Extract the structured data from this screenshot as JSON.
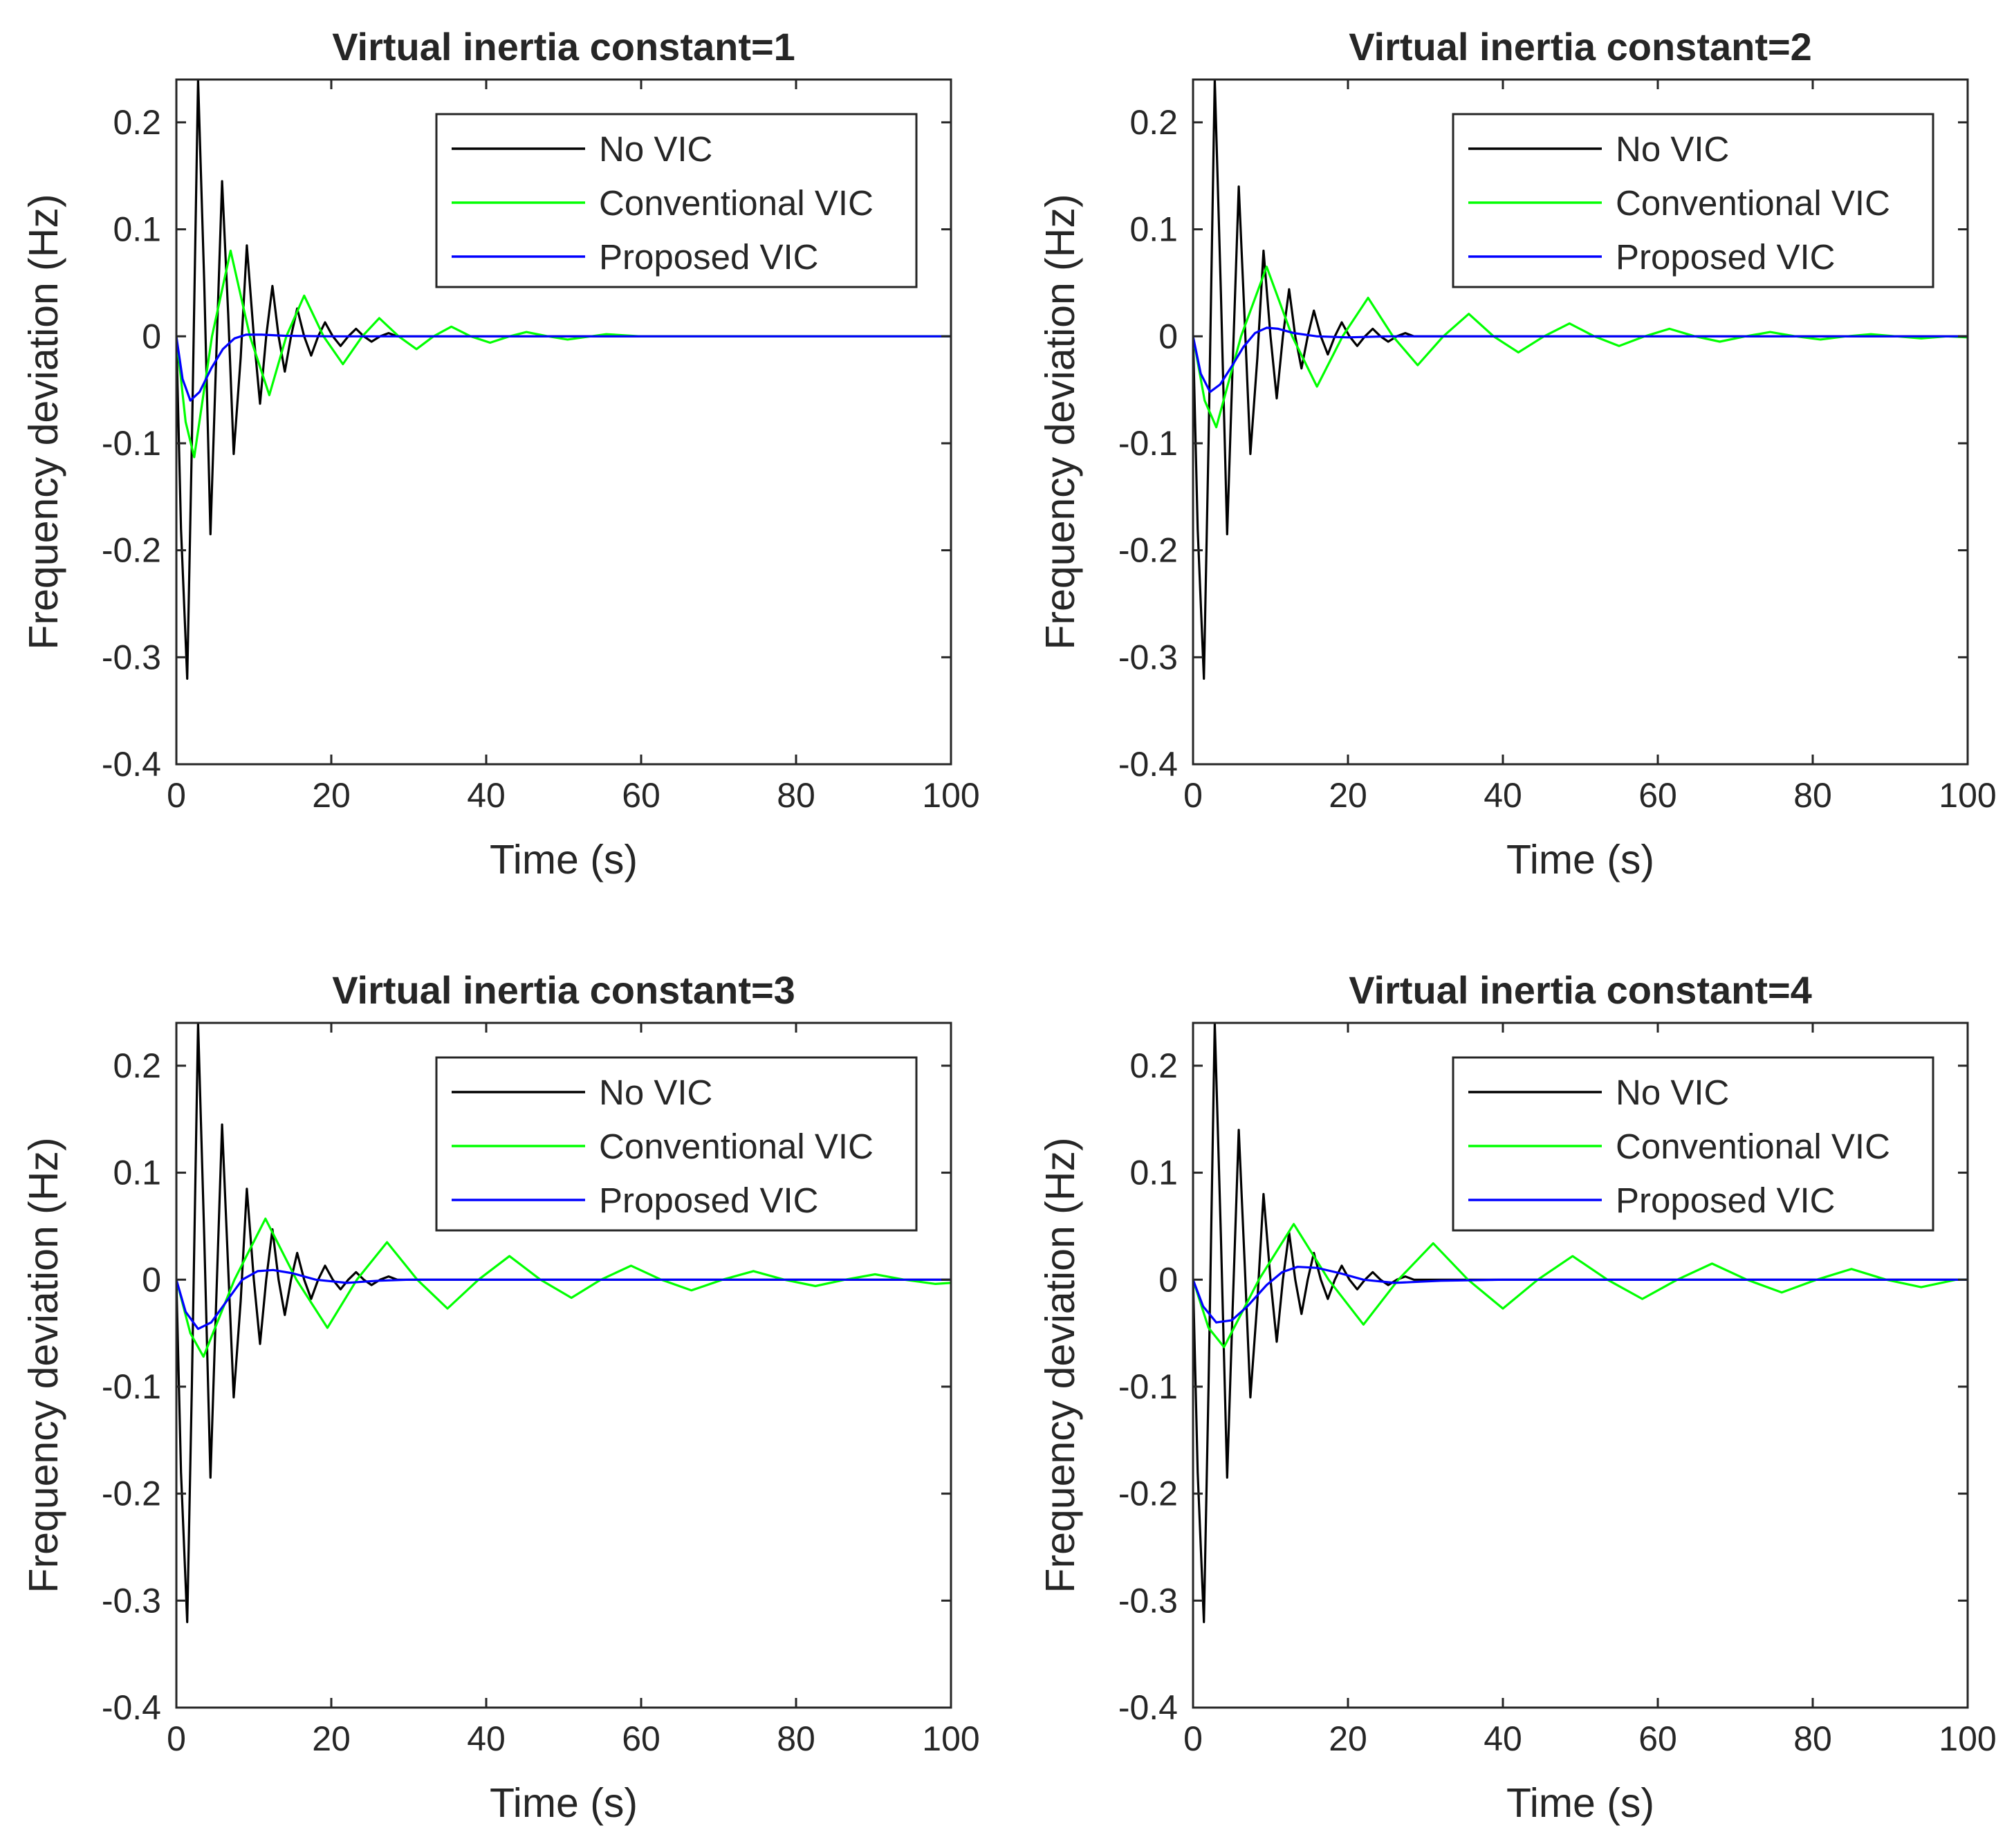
{
  "figure": {
    "x_label": "Time (s)",
    "y_label": "Frequency deviation (Hz)"
  },
  "chart_data": [
    {
      "type": "line",
      "title": "Virtual inertia constant=1",
      "xlabel": "Time (s)",
      "ylabel": "Frequency deviation (Hz)",
      "xlim": [
        0,
        100
      ],
      "ylim": [
        -0.4,
        0.24
      ],
      "xticks": [
        0,
        20,
        40,
        60,
        80,
        100
      ],
      "yticks": [
        -0.4,
        -0.3,
        -0.2,
        -0.1,
        0,
        0.1,
        0.2
      ],
      "xtick_labels": [
        "0",
        "20",
        "40",
        "60",
        "80",
        "100"
      ],
      "ytick_labels": [
        "-0.4",
        "-0.3",
        "-0.2",
        "-0.1",
        "0",
        "0.1",
        "0.2"
      ],
      "grid": false,
      "legend_position": "top-right",
      "series": [
        {
          "name": "No VIC",
          "color": "#000000",
          "x": [
            0,
            0.6,
            1.4,
            2.0,
            2.8,
            3.6,
            4.4,
            5.1,
            5.9,
            6.7,
            7.4,
            8.3,
            9.1,
            10.0,
            10.8,
            11.6,
            12.4,
            13.2,
            14.0,
            14.8,
            15.6,
            16.5,
            17.4,
            18.3,
            19.2,
            20.2,
            21.2,
            22.2,
            23.2,
            24.2,
            25.2,
            26.3,
            27.4,
            28.5,
            30,
            35,
            40,
            100
          ],
          "y": [
            0,
            -0.18,
            -0.32,
            -0.1,
            0.24,
            0.05,
            -0.185,
            -0.03,
            0.145,
            0.02,
            -0.11,
            -0.02,
            0.085,
            0.0,
            -0.063,
            0.0,
            0.047,
            0.0,
            -0.033,
            0.0,
            0.026,
            0.0,
            -0.018,
            0.0,
            0.013,
            0.0,
            -0.009,
            0.0,
            0.007,
            0.0,
            -0.005,
            0.0,
            0.003,
            0.0,
            0.0,
            0.0,
            0.0,
            0.0
          ]
        },
        {
          "name": "Conventional VIC",
          "color": "#00ff00",
          "x": [
            0,
            1.2,
            2.3,
            4.6,
            7.0,
            9.5,
            12.0,
            14.2,
            16.5,
            19.0,
            21.5,
            24.0,
            26.2,
            28.7,
            31.0,
            33.2,
            35.5,
            38.0,
            40.5,
            43.0,
            45.2,
            48.0,
            50.5,
            53.5,
            55.5,
            60,
            100
          ],
          "y": [
            0,
            -0.08,
            -0.113,
            0.0,
            0.08,
            0.0,
            -0.055,
            0.0,
            0.038,
            0.0,
            -0.026,
            0.0,
            0.017,
            0.0,
            -0.012,
            0.0,
            0.009,
            0.0,
            -0.006,
            0.0,
            0.004,
            0.0,
            -0.003,
            0.0,
            0.002,
            0.0,
            0.0
          ]
        },
        {
          "name": "Proposed VIC",
          "color": "#0000ff",
          "x": [
            0,
            0.8,
            1.8,
            3.0,
            4.5,
            6.0,
            7.5,
            9.0,
            11.0,
            14.0,
            20.0,
            100
          ],
          "y": [
            0,
            -0.04,
            -0.06,
            -0.052,
            -0.03,
            -0.012,
            -0.002,
            0.0015,
            0.0015,
            0.0005,
            0.0,
            0.0
          ]
        }
      ]
    },
    {
      "type": "line",
      "title": "Virtual inertia constant=2",
      "xlabel": "Time (s)",
      "ylabel": "Frequency deviation (Hz)",
      "xlim": [
        0,
        100
      ],
      "ylim": [
        -0.4,
        0.24
      ],
      "xticks": [
        0,
        20,
        40,
        60,
        80,
        100
      ],
      "yticks": [
        -0.4,
        -0.3,
        -0.2,
        -0.1,
        0,
        0.1,
        0.2
      ],
      "xtick_labels": [
        "0",
        "20",
        "40",
        "60",
        "80",
        "100"
      ],
      "ytick_labels": [
        "-0.4",
        "-0.3",
        "-0.2",
        "-0.1",
        "0",
        "0.1",
        "0.2"
      ],
      "grid": false,
      "legend_position": "top-right",
      "series": [
        {
          "name": "No VIC",
          "color": "#000000",
          "x": [
            0,
            0.6,
            1.4,
            2.0,
            2.8,
            3.6,
            4.4,
            5.1,
            5.9,
            6.7,
            7.4,
            8.3,
            9.1,
            10.0,
            10.8,
            11.6,
            12.4,
            13.2,
            14.0,
            14.8,
            15.6,
            16.5,
            17.4,
            18.3,
            19.2,
            20.2,
            21.2,
            22.2,
            23.2,
            24.2,
            25.2,
            26.3,
            27.4,
            28.5,
            30,
            35,
            40,
            100
          ],
          "y": [
            0,
            -0.18,
            -0.32,
            -0.1,
            0.24,
            0.04,
            -0.185,
            -0.03,
            0.14,
            0.01,
            -0.11,
            -0.02,
            0.08,
            0.0,
            -0.058,
            0.0,
            0.044,
            0.0,
            -0.03,
            0.0,
            0.024,
            0.0,
            -0.017,
            0.0,
            0.013,
            0.0,
            -0.009,
            0.0,
            0.007,
            0.0,
            -0.005,
            0.0,
            0.003,
            0.0,
            0.0,
            0.0,
            0.0,
            0.0
          ]
        },
        {
          "name": "Conventional VIC",
          "color": "#00ff00",
          "x": [
            0,
            1.5,
            3.0,
            6.2,
            9.5,
            12.8,
            16.0,
            19.3,
            22.6,
            25.8,
            29.0,
            32.3,
            35.6,
            38.8,
            42.0,
            45.3,
            48.6,
            51.8,
            55.0,
            58.3,
            61.5,
            64.8,
            68.0,
            71.3,
            74.5,
            77.8,
            81.0,
            84.3,
            87.5,
            90.8,
            94.0,
            97.3,
            100
          ],
          "y": [
            0,
            -0.06,
            -0.085,
            0.0,
            0.065,
            0.0,
            -0.047,
            0.0,
            0.036,
            0.0,
            -0.027,
            0.0,
            0.021,
            0.0,
            -0.015,
            0.0,
            0.012,
            0.0,
            -0.009,
            0.0,
            0.007,
            0.0,
            -0.005,
            0.0,
            0.004,
            0.0,
            -0.003,
            0.0,
            0.002,
            0.0,
            -0.002,
            0.0,
            -0.001
          ]
        },
        {
          "name": "Proposed VIC",
          "color": "#0000ff",
          "x": [
            0,
            1.0,
            2.2,
            3.5,
            5.0,
            6.5,
            8.0,
            9.5,
            11.0,
            13.0,
            16.0,
            20.0,
            25.0,
            100
          ],
          "y": [
            0,
            -0.035,
            -0.052,
            -0.045,
            -0.028,
            -0.01,
            0.003,
            0.008,
            0.007,
            0.003,
            0.0,
            -0.001,
            0.0,
            0.0
          ]
        }
      ]
    },
    {
      "type": "line",
      "title": "Virtual inertia constant=3",
      "xlabel": "Time (s)",
      "ylabel": "Frequency deviation (Hz)",
      "xlim": [
        0,
        100
      ],
      "ylim": [
        -0.4,
        0.24
      ],
      "xticks": [
        0,
        20,
        40,
        60,
        80,
        100
      ],
      "yticks": [
        -0.4,
        -0.3,
        -0.2,
        -0.1,
        0,
        0.1,
        0.2
      ],
      "xtick_labels": [
        "0",
        "20",
        "40",
        "60",
        "80",
        "100"
      ],
      "ytick_labels": [
        "-0.4",
        "-0.3",
        "-0.2",
        "-0.1",
        "0",
        "0.1",
        "0.2"
      ],
      "grid": false,
      "legend_position": "top-right",
      "series": [
        {
          "name": "No VIC",
          "color": "#000000",
          "x": [
            0,
            0.6,
            1.4,
            2.0,
            2.8,
            3.6,
            4.4,
            5.1,
            5.9,
            6.7,
            7.4,
            8.3,
            9.1,
            10.0,
            10.8,
            11.6,
            12.4,
            13.2,
            14.0,
            14.8,
            15.6,
            16.5,
            17.4,
            18.3,
            19.2,
            20.2,
            21.2,
            22.2,
            23.2,
            24.2,
            25.2,
            26.3,
            27.4,
            28.5,
            30,
            35,
            40,
            100
          ],
          "y": [
            0,
            -0.18,
            -0.32,
            -0.1,
            0.24,
            0.04,
            -0.185,
            -0.03,
            0.145,
            0.01,
            -0.11,
            -0.02,
            0.085,
            0.0,
            -0.06,
            0.0,
            0.047,
            0.0,
            -0.033,
            0.0,
            0.025,
            0.0,
            -0.018,
            0.0,
            0.013,
            0.0,
            -0.009,
            0.0,
            0.007,
            0.0,
            -0.005,
            0.0,
            0.003,
            0.0,
            0.0,
            0.0,
            0.0,
            0.0
          ]
        },
        {
          "name": "Conventional VIC",
          "color": "#00ff00",
          "x": [
            0,
            1.8,
            3.5,
            7.5,
            11.5,
            15.5,
            19.5,
            23.3,
            27.2,
            31.1,
            35.0,
            39.0,
            43.0,
            47.0,
            51.0,
            54.8,
            58.7,
            62.6,
            66.5,
            70.5,
            74.5,
            78.5,
            82.5,
            86.3,
            90.2,
            94.0,
            98.0,
            100
          ],
          "y": [
            0,
            -0.05,
            -0.072,
            0.0,
            0.057,
            0.0,
            -0.045,
            0.0,
            0.035,
            0.0,
            -0.027,
            0.0,
            0.022,
            0.0,
            -0.017,
            0.0,
            0.013,
            0.0,
            -0.01,
            0.0,
            0.008,
            0.0,
            -0.006,
            0.0,
            0.005,
            0.0,
            -0.004,
            -0.003
          ]
        },
        {
          "name": "Proposed VIC",
          "color": "#0000ff",
          "x": [
            0,
            1.2,
            2.8,
            4.5,
            6.5,
            8.5,
            10.5,
            12.5,
            15.0,
            18.0,
            22.0,
            26.0,
            30.0,
            100
          ],
          "y": [
            0,
            -0.03,
            -0.046,
            -0.04,
            -0.02,
            0.0,
            0.008,
            0.009,
            0.006,
            0.0,
            -0.003,
            -0.001,
            0.0,
            0.0
          ]
        }
      ]
    },
    {
      "type": "line",
      "title": "Virtual inertia constant=4",
      "xlabel": "Time (s)",
      "ylabel": "Frequency deviation (Hz)",
      "xlim": [
        0,
        100
      ],
      "ylim": [
        -0.4,
        0.24
      ],
      "xticks": [
        0,
        20,
        40,
        60,
        80,
        100
      ],
      "yticks": [
        -0.4,
        -0.3,
        -0.2,
        -0.1,
        0,
        0.1,
        0.2
      ],
      "xtick_labels": [
        "0",
        "20",
        "40",
        "60",
        "80",
        "100"
      ],
      "ytick_labels": [
        "-0.4",
        "-0.3",
        "-0.2",
        "-0.1",
        "0",
        "0.1",
        "0.2"
      ],
      "grid": false,
      "legend_position": "top-right",
      "series": [
        {
          "name": "No VIC",
          "color": "#000000",
          "x": [
            0,
            0.6,
            1.4,
            2.0,
            2.8,
            3.6,
            4.4,
            5.1,
            5.9,
            6.7,
            7.4,
            8.3,
            9.1,
            10.0,
            10.8,
            11.6,
            12.4,
            13.2,
            14.0,
            14.8,
            15.6,
            16.5,
            17.4,
            18.3,
            19.2,
            20.2,
            21.2,
            22.2,
            23.2,
            24.2,
            25.2,
            26.3,
            27.4,
            28.5,
            30,
            35,
            40,
            100
          ],
          "y": [
            0,
            -0.18,
            -0.32,
            -0.1,
            0.24,
            0.04,
            -0.185,
            -0.03,
            0.14,
            0.01,
            -0.11,
            -0.02,
            0.08,
            0.0,
            -0.058,
            0.0,
            0.044,
            0.0,
            -0.032,
            0.0,
            0.025,
            0.0,
            -0.018,
            0.0,
            0.013,
            0.0,
            -0.009,
            0.0,
            0.007,
            0.0,
            -0.005,
            0.0,
            0.003,
            0.0,
            0.0,
            0.0,
            0.0,
            0.0
          ]
        },
        {
          "name": "Conventional VIC",
          "color": "#00ff00",
          "x": [
            0,
            2.0,
            4.0,
            8.5,
            13.0,
            17.5,
            22.0,
            26.5,
            31.0,
            35.5,
            40.0,
            44.5,
            49.0,
            53.5,
            58.0,
            62.5,
            67.0,
            71.5,
            76.0,
            80.5,
            85.0,
            89.5,
            94.0,
            98.5,
            100
          ],
          "y": [
            0,
            -0.045,
            -0.063,
            0.0,
            0.052,
            0.0,
            -0.042,
            0.0,
            0.034,
            0.0,
            -0.027,
            0.0,
            0.022,
            0.0,
            -0.018,
            0.0,
            0.015,
            0.0,
            -0.012,
            0.0,
            0.01,
            0.0,
            -0.007,
            0.0,
            0.0
          ]
        },
        {
          "name": "Proposed VIC",
          "color": "#0000ff",
          "x": [
            0,
            1.3,
            3.0,
            5.0,
            7.0,
            9.5,
            11.5,
            13.5,
            16.0,
            19.0,
            22.0,
            26.0,
            32.0,
            40.0,
            100
          ],
          "y": [
            0,
            -0.025,
            -0.04,
            -0.038,
            -0.025,
            -0.005,
            0.007,
            0.012,
            0.011,
            0.006,
            0.0,
            -0.003,
            -0.001,
            0.0,
            0.0
          ]
        }
      ]
    }
  ]
}
